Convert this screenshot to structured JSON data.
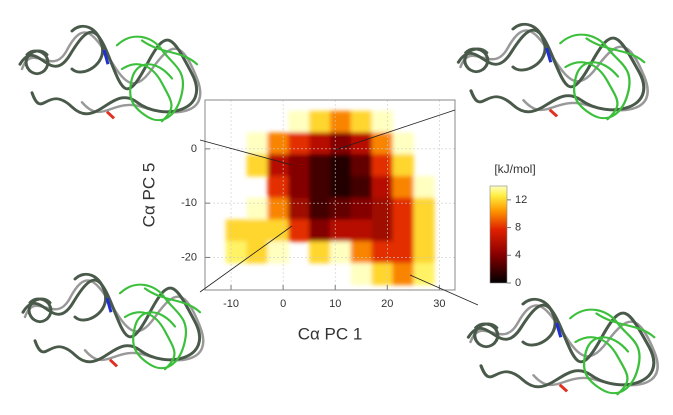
{
  "chart_data": {
    "type": "heatmap",
    "xlabel": "Cα PC 1",
    "ylabel": "Cα PC 5",
    "colorbar_label": "[kJ/mol]",
    "xlim": [
      -15,
      33
    ],
    "ylim": [
      -26,
      9
    ],
    "xticks": [
      -10,
      0,
      10,
      20,
      30
    ],
    "yticks": [
      -20,
      -10,
      0
    ],
    "zlim": [
      0,
      14
    ],
    "colorbar_ticks": [
      0,
      4,
      8,
      12
    ],
    "grid": true,
    "x": [
      -13,
      -9,
      -5,
      -1,
      3,
      7,
      11,
      15,
      19,
      23,
      27,
      31
    ],
    "y": [
      5,
      1,
      -3,
      -7,
      -11,
      -15,
      -19,
      -23
    ],
    "z": [
      [
        null,
        null,
        null,
        null,
        14,
        12,
        10,
        12,
        14,
        null,
        null,
        null
      ],
      [
        null,
        null,
        14,
        10,
        8,
        6,
        4,
        6,
        10,
        14,
        null,
        null
      ],
      [
        null,
        null,
        12,
        6,
        4,
        2,
        1,
        3,
        8,
        12,
        null,
        null
      ],
      [
        null,
        null,
        null,
        8,
        4,
        2,
        1,
        2,
        6,
        10,
        14,
        null
      ],
      [
        null,
        null,
        14,
        10,
        5,
        2,
        3,
        4,
        5,
        8,
        12,
        null
      ],
      [
        null,
        12,
        12,
        12,
        8,
        4,
        6,
        6,
        5,
        8,
        12,
        null
      ],
      [
        null,
        13,
        12,
        14,
        null,
        12,
        14,
        10,
        8,
        8,
        12,
        null
      ],
      [
        null,
        null,
        null,
        null,
        null,
        null,
        null,
        14,
        12,
        10,
        13,
        null
      ]
    ]
  }
}
